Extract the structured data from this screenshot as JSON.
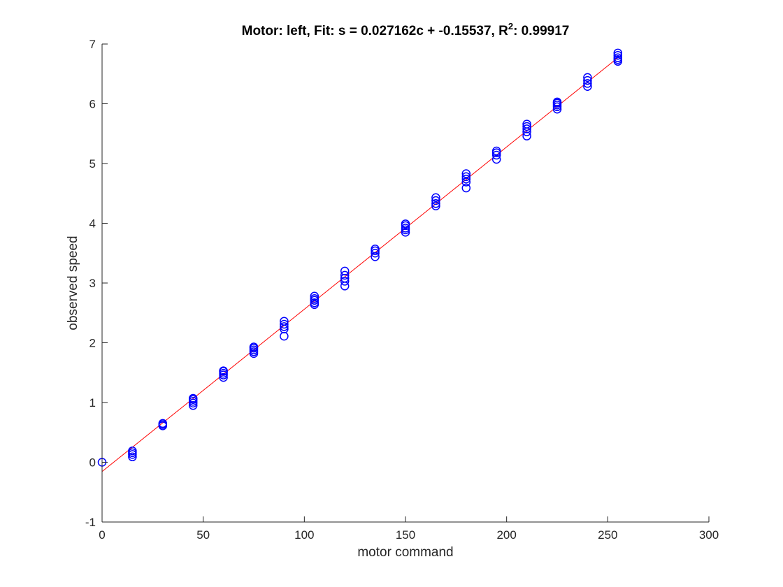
{
  "chart_data": {
    "type": "scatter",
    "title_main": "Motor: left, Fit: s = 0.027162c + -0.15537, R",
    "title_sup": "2",
    "title_tail": ": 0.99917",
    "xlabel": "motor command",
    "ylabel": "observed speed",
    "xlim": [
      0,
      300
    ],
    "ylim": [
      -1,
      7
    ],
    "xticks": [
      0,
      50,
      100,
      150,
      200,
      250,
      300
    ],
    "yticks": [
      -1,
      0,
      1,
      2,
      3,
      4,
      5,
      6,
      7
    ],
    "grid": false,
    "series": [
      {
        "type": "scatter",
        "marker": "circle-open",
        "color": "#0000ff",
        "x": [
          0,
          15,
          15,
          15,
          15,
          30,
          30,
          30,
          45,
          45,
          45,
          45,
          45,
          60,
          60,
          60,
          60,
          60,
          75,
          75,
          75,
          75,
          75,
          90,
          90,
          90,
          90,
          90,
          105,
          105,
          105,
          105,
          105,
          120,
          120,
          120,
          120,
          120,
          135,
          135,
          135,
          135,
          150,
          150,
          150,
          150,
          150,
          165,
          165,
          165,
          165,
          180,
          180,
          180,
          180,
          180,
          195,
          195,
          195,
          195,
          210,
          210,
          210,
          210,
          210,
          225,
          225,
          225,
          225,
          225,
          240,
          240,
          240,
          240,
          255,
          255,
          255,
          255,
          255
        ],
        "y": [
          0.0,
          0.09,
          0.13,
          0.16,
          0.19,
          0.61,
          0.63,
          0.65,
          0.95,
          0.99,
          1.02,
          1.05,
          1.07,
          1.42,
          1.46,
          1.49,
          1.52,
          1.53,
          1.82,
          1.85,
          1.88,
          1.91,
          1.93,
          2.11,
          2.23,
          2.27,
          2.31,
          2.36,
          2.64,
          2.67,
          2.71,
          2.74,
          2.78,
          2.95,
          3.03,
          3.08,
          3.13,
          3.2,
          3.44,
          3.5,
          3.54,
          3.57,
          3.85,
          3.89,
          3.92,
          3.96,
          3.99,
          4.29,
          4.33,
          4.38,
          4.43,
          4.59,
          4.69,
          4.74,
          4.78,
          4.83,
          5.07,
          5.14,
          5.18,
          5.21,
          5.46,
          5.53,
          5.58,
          5.62,
          5.66,
          5.91,
          5.95,
          5.98,
          6.01,
          6.03,
          6.29,
          6.34,
          6.39,
          6.44,
          6.71,
          6.74,
          6.77,
          6.81,
          6.85
        ]
      },
      {
        "type": "line",
        "color": "#ff0000",
        "x": [
          0,
          255
        ],
        "y": [
          -0.15537,
          6.771
        ]
      }
    ]
  }
}
